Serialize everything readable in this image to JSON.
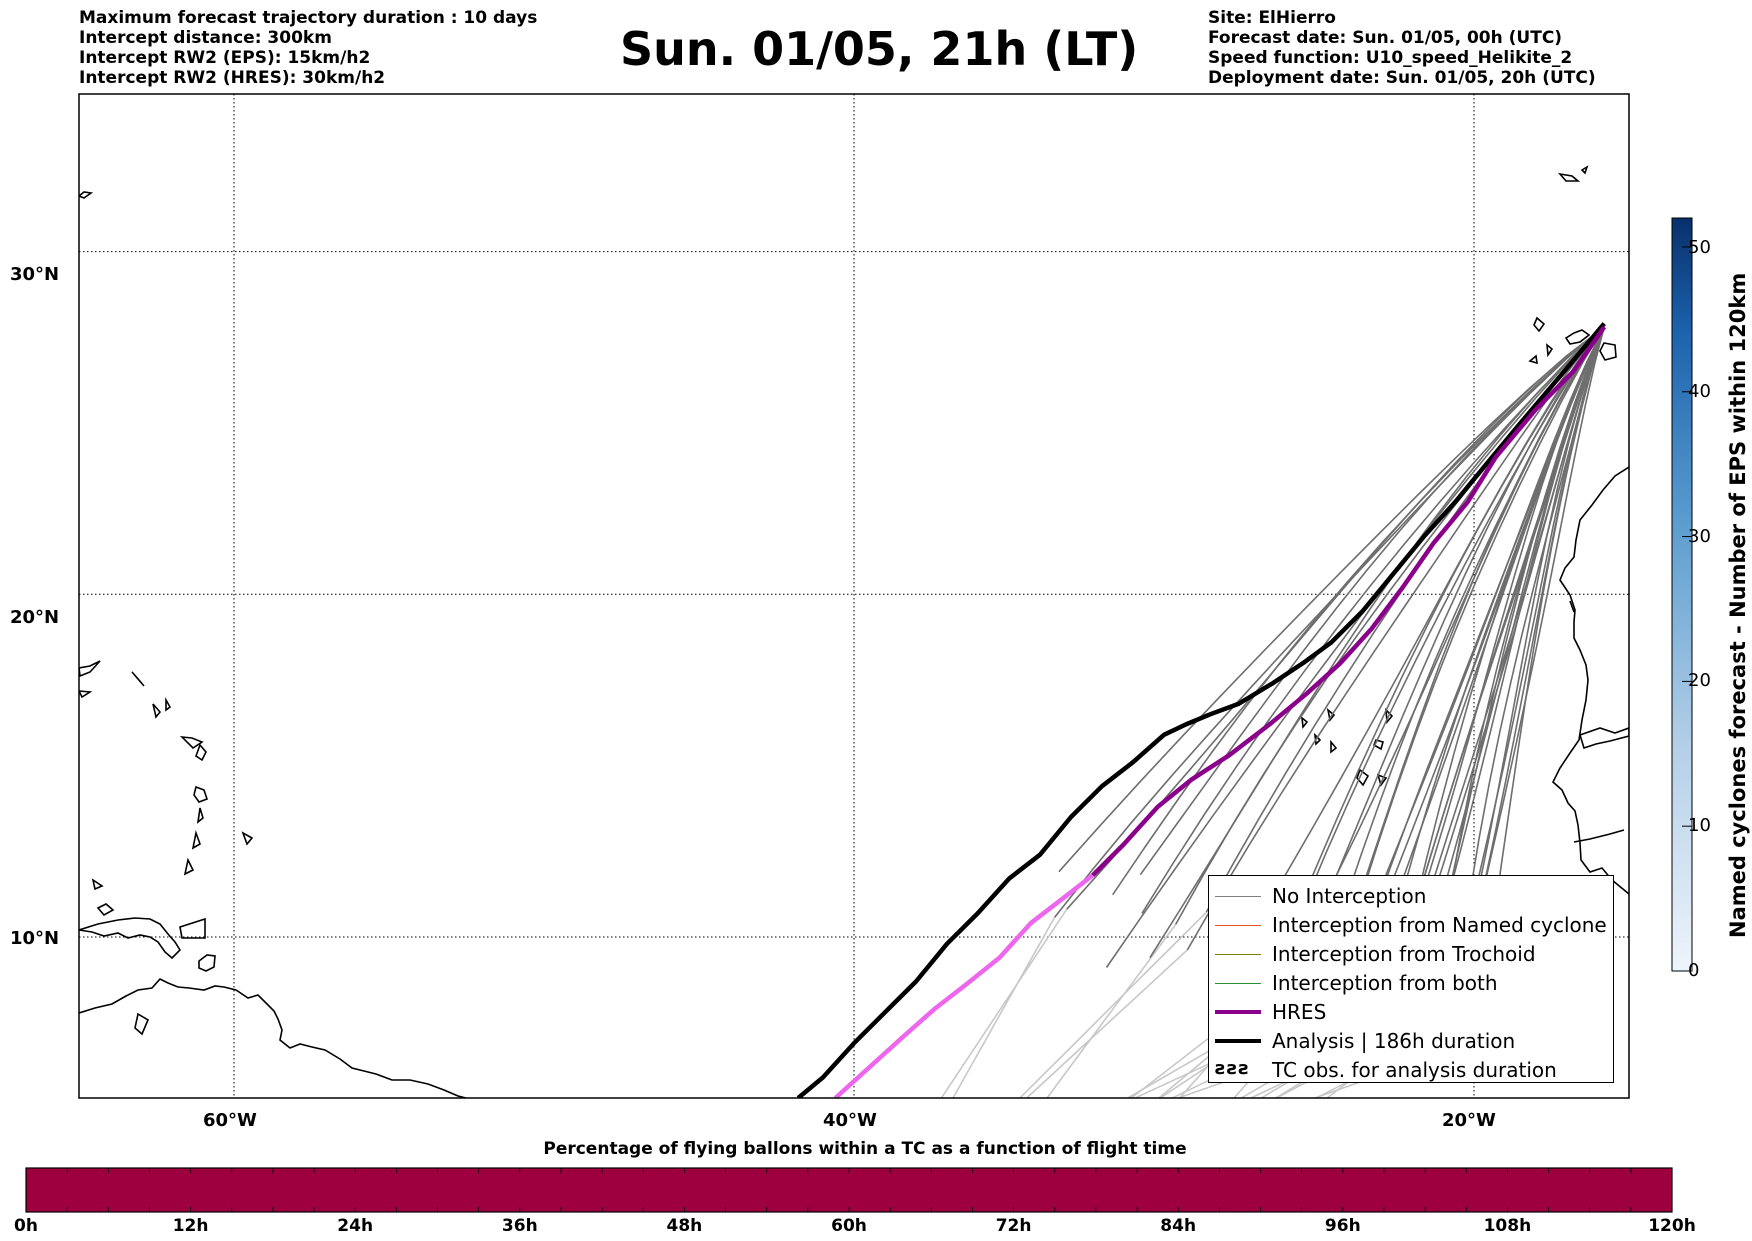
{
  "header": {
    "left_lines": [
      "Maximum forecast trajectory duration : 10 days",
      "Intercept distance: 300km",
      "Intercept RW2 (EPS):  15km/h2",
      "Intercept RW2 (HRES): 30km/h2"
    ],
    "title": "Sun. 01/05, 21h (LT)",
    "right_lines": [
      "Site: ElHierro",
      "Forecast date: Sun. 01/05, 00h (UTC)",
      "Speed function: U10_speed_Helikite_2",
      "Deployment date: Sun. 01/05, 20h (UTC)"
    ]
  },
  "map": {
    "lat_ticks": [
      {
        "value": 30,
        "label": "30°N"
      },
      {
        "value": 20,
        "label": "20°N"
      },
      {
        "value": 10,
        "label": "10°N"
      }
    ],
    "lon_ticks": [
      {
        "value": -60,
        "label": "60°W"
      },
      {
        "value": -40,
        "label": "40°W"
      },
      {
        "value": -20,
        "label": "20°W"
      }
    ],
    "lon_range": [
      -65,
      -15
    ],
    "lat_range": [
      5.3,
      34.6
    ],
    "gridlines": true
  },
  "legend": {
    "items": [
      {
        "label": "No Interception",
        "color": "#808080",
        "style": "thin"
      },
      {
        "label": "Interception from Named cyclone",
        "color": "#e8541d",
        "style": "thin"
      },
      {
        "label": "Interception from Trochoid",
        "color": "#808000",
        "style": "thin"
      },
      {
        "label": "Interception from both",
        "color": "#2e8b2e",
        "style": "thin"
      },
      {
        "label": "HRES",
        "color": "#8b008b",
        "style": "thick"
      },
      {
        "label": "Analysis | 186h duration",
        "color": "#000000",
        "style": "thick"
      },
      {
        "label": "TC obs. for analysis duration",
        "color": "#000000",
        "style": "symbol",
        "symbol": "ƨƨƨ"
      }
    ]
  },
  "vertical_colorbar": {
    "title": "Named cyclones forecast - Number of EPS within 120km",
    "ticks": [
      "0",
      "10",
      "20",
      "30",
      "40",
      "50"
    ],
    "range": [
      0,
      52
    ]
  },
  "horizontal_colorbar": {
    "caption": "Percentage of flying ballons within a TC as a function of flight time",
    "ticks": [
      "0h",
      "12h",
      "24h",
      "36h",
      "48h",
      "60h",
      "72h",
      "84h",
      "96h",
      "108h",
      "120h"
    ],
    "color": "#9e003f"
  },
  "trajectories": {
    "analysis": [
      [
        -15.8,
        27.9
      ],
      [
        -17.0,
        26.6
      ],
      [
        -18.5,
        25.0
      ],
      [
        -19.6,
        23.8
      ],
      [
        -20.6,
        22.7
      ],
      [
        -21.6,
        21.7
      ],
      [
        -22.6,
        20.6
      ],
      [
        -23.6,
        19.5
      ],
      [
        -24.6,
        18.6
      ],
      [
        -25.5,
        18.0
      ],
      [
        -26.5,
        17.4
      ],
      [
        -27.6,
        16.8
      ],
      [
        -28.5,
        16.5
      ],
      [
        -29.3,
        16.2
      ],
      [
        -30.0,
        15.9
      ],
      [
        -31.0,
        15.1
      ],
      [
        -32.0,
        14.4
      ],
      [
        -33.0,
        13.5
      ],
      [
        -34.0,
        12.4
      ],
      [
        -35.0,
        11.7
      ],
      [
        -36.0,
        10.7
      ],
      [
        -37.0,
        9.8
      ],
      [
        -38.0,
        8.7
      ],
      [
        -39.0,
        7.8
      ],
      [
        -40.0,
        6.9
      ],
      [
        -41.0,
        5.9
      ],
      [
        -41.8,
        5.3
      ]
    ],
    "hres": [
      [
        -15.8,
        27.8
      ],
      [
        -16.8,
        26.5
      ],
      [
        -18.0,
        25.4
      ],
      [
        -19.3,
        24.0
      ],
      [
        -20.2,
        22.7
      ],
      [
        -21.3,
        21.5
      ],
      [
        -22.3,
        20.2
      ],
      [
        -23.3,
        19.0
      ],
      [
        -24.3,
        18.0
      ],
      [
        -25.4,
        17.1
      ],
      [
        -26.6,
        16.2
      ],
      [
        -27.9,
        15.3
      ],
      [
        -29.1,
        14.6
      ],
      [
        -30.2,
        13.8
      ],
      [
        -31.3,
        12.7
      ],
      [
        -32.3,
        11.8
      ],
      [
        -33.3,
        11.1
      ],
      [
        -34.3,
        10.4
      ],
      [
        -35.3,
        9.4
      ],
      [
        -36.4,
        8.6
      ],
      [
        -37.4,
        7.9
      ],
      [
        -38.4,
        7.1
      ],
      [
        -39.5,
        6.2
      ],
      [
        -40.6,
        5.3
      ]
    ],
    "hres_light_start_index": 15,
    "eps_dark_count": 40,
    "eps_light_count": 22
  }
}
